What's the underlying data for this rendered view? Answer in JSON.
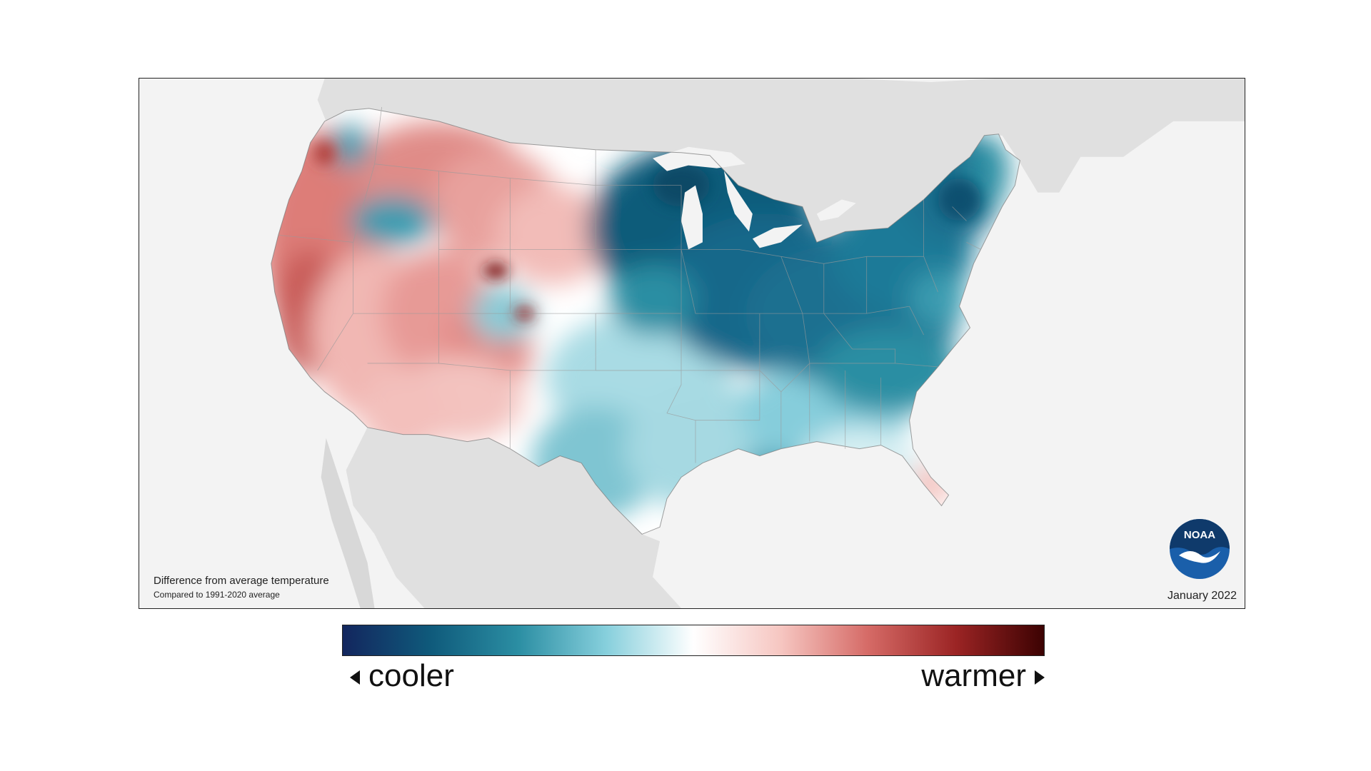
{
  "map": {
    "caption_title": "Difference from average temperature",
    "caption_subtitle": "Compared to 1991-2020 average",
    "period": "January 2022",
    "logo_text": "NOAA",
    "colors": {
      "background": "#f3f3f3",
      "neighbor_land": "#e0e0e0",
      "lakes": "#ffffff",
      "neutral": "#ffffff",
      "cool_strong": "#0f5b7a",
      "cool_mid": "#3a9bb0",
      "cool_light": "#a9dbe4",
      "warm_light": "#f5c4c0",
      "warm_mid": "#dd7d78",
      "warm_strong": "#a32a2a"
    }
  },
  "legend": {
    "cooler_label": "cooler",
    "warmer_label": "warmer",
    "gradient_stops": [
      "#13265e",
      "#0f5a7b",
      "#2b8ea3",
      "#86cfdc",
      "#ffffff",
      "#f6c6c1",
      "#d56a66",
      "#9b2424",
      "#3c0202"
    ]
  }
}
